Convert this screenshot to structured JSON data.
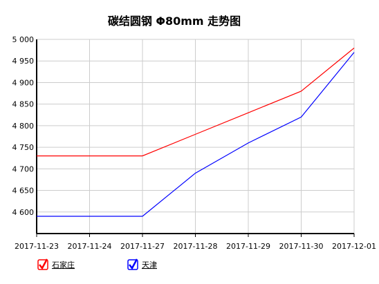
{
  "chart_data": {
    "type": "line",
    "title": "碳结圆钢 Φ80mm 走势图",
    "categories": [
      "2017-11-23",
      "2017-11-24",
      "2017-11-27",
      "2017-11-28",
      "2017-11-29",
      "2017-11-30",
      "2017-12-01"
    ],
    "series": [
      {
        "name": "石家庄",
        "color": "#ff0000",
        "values": [
          4730,
          4730,
          4730,
          4780,
          4830,
          4880,
          4980
        ]
      },
      {
        "name": "天津",
        "color": "#0000ff",
        "values": [
          4590,
          4590,
          4590,
          4690,
          4760,
          4820,
          4970
        ]
      }
    ],
    "ylim": [
      4550,
      5000
    ],
    "yticks": [
      {
        "value": 4600,
        "label": "4 600"
      },
      {
        "value": 4650,
        "label": "4 650"
      },
      {
        "value": 4700,
        "label": "4 700"
      },
      {
        "value": 4750,
        "label": "4 750"
      },
      {
        "value": 4800,
        "label": "4 800"
      },
      {
        "value": 4850,
        "label": "4 850"
      },
      {
        "value": 4900,
        "label": "4 900"
      },
      {
        "value": 4950,
        "label": "4 950"
      },
      {
        "value": 5000,
        "label": "5 000"
      }
    ],
    "grid": true
  }
}
